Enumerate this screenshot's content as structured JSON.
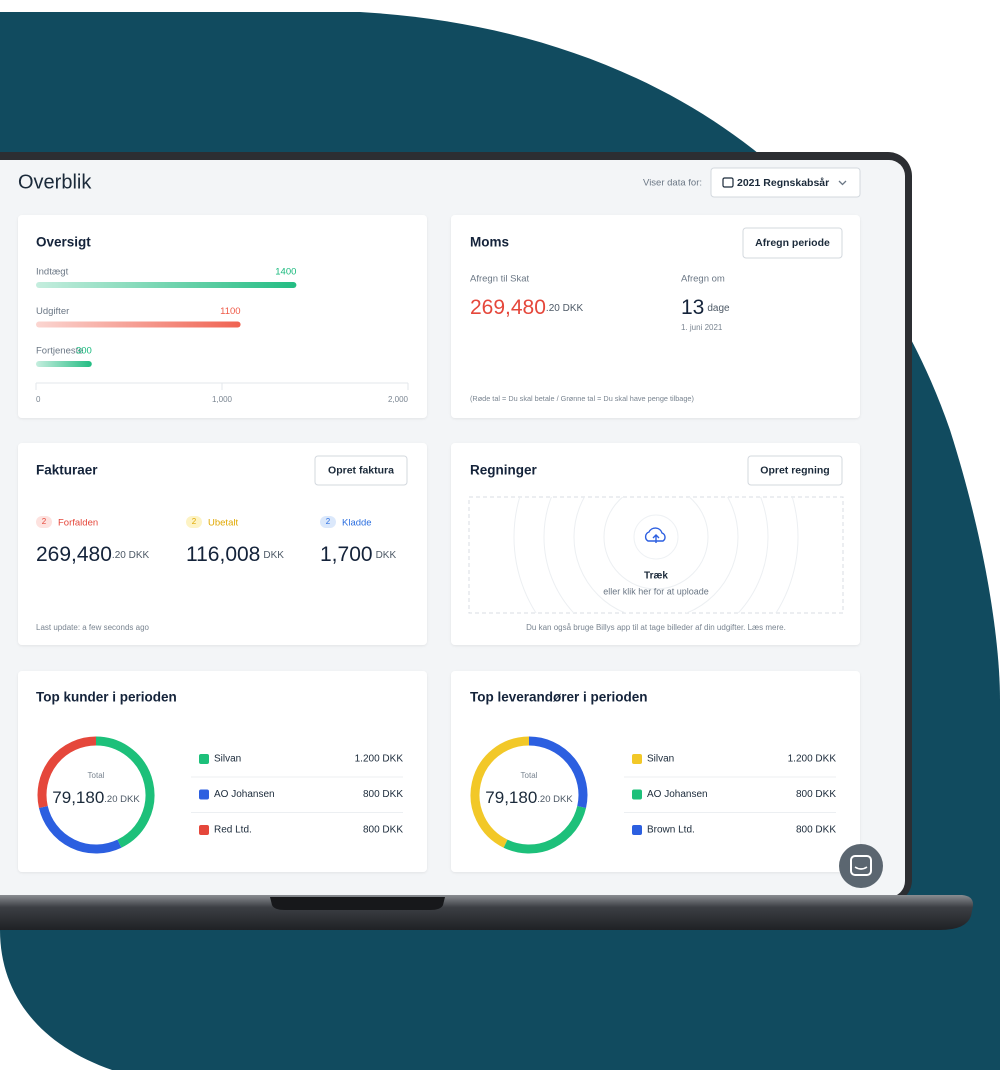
{
  "header": {
    "title": "Overblik",
    "data_for_label": "Viser data for:",
    "period": "2021 Regnskabsår"
  },
  "oversigt": {
    "title": "Oversigt",
    "chart": {
      "type": "bar",
      "orientation": "horizontal",
      "categories": [
        "Indtægt",
        "Udgifter",
        "Fortjeneste"
      ],
      "values": [
        1400,
        1100,
        300
      ],
      "colors": [
        "#17b97c",
        "#ef5a48",
        "#17b97c"
      ],
      "xlim": [
        0,
        2000
      ],
      "xticks": [
        0,
        {
          "value": 1000,
          "label": "1,000"
        },
        {
          "value": 2000,
          "label": "2,000"
        }
      ]
    }
  },
  "moms": {
    "title": "Moms",
    "button": "Afregn periode",
    "settle_label": "Afregn til Skat",
    "amount": "269,480",
    "amount_suffix": ".20 DKK",
    "due_label": "Afregn om",
    "days": "13",
    "days_unit": "dage",
    "due_date": "1. juni 2021",
    "note": "(Røde tal = Du skal betale / Grønne tal = Du skal have penge tilbage)"
  },
  "fakturaer": {
    "title": "Fakturaer",
    "button": "Opret faktura",
    "items": [
      {
        "count": "2",
        "label": "Forfalden",
        "amount": "269,480",
        "suffix": ".20 DKK",
        "color": "#e5473b",
        "badge_color": "#fde2df"
      },
      {
        "count": "2",
        "label": "Ubetalt",
        "amount": "116,008",
        "suffix": "DKK",
        "color": "#e0a800",
        "badge_color": "#fdf3c4"
      },
      {
        "count": "2",
        "label": "Kladde",
        "amount": "1,700",
        "suffix": "DKK",
        "color": "#2c6fe0",
        "badge_color": "#dbe8fb"
      }
    ],
    "footer": "Last update: a few seconds ago"
  },
  "regninger": {
    "title": "Regninger",
    "button": "Opret regning",
    "upload_title": "Træk",
    "upload_hint": "eller klik her for at uploade",
    "footer": "Du kan også bruge Billys app til at tage billeder af din udgifter. Læs mere."
  },
  "top_kunder": {
    "title": "Top kunder i perioden",
    "chart": {
      "type": "pie",
      "donut": true,
      "clockwise": true,
      "center_label": "Total",
      "total": "79,180",
      "total_suffix": ".20 DKK",
      "categories": [
        "Silvan",
        "AO Johansen",
        "Red Ltd."
      ],
      "values": [
        1200,
        800,
        800
      ],
      "value_labels": [
        "1.200 DKK",
        "800 DKK",
        "800 DKK"
      ],
      "colors": [
        "#1dc07a",
        "#2c5fe0",
        "#e5473b"
      ]
    }
  },
  "top_leverandorer": {
    "title": "Top leverandører i perioden",
    "chart": {
      "type": "pie",
      "donut": true,
      "clockwise": false,
      "center_label": "Total",
      "total": "79,180",
      "total_suffix": ".20 DKK",
      "categories": [
        "Silvan",
        "AO Johansen",
        "Brown Ltd."
      ],
      "values": [
        1200,
        800,
        800
      ],
      "value_labels": [
        "1.200 DKK",
        "800 DKK",
        "800 DKK"
      ],
      "colors": [
        "#f2c828",
        "#1dc07a",
        "#2c5fe0"
      ]
    }
  }
}
